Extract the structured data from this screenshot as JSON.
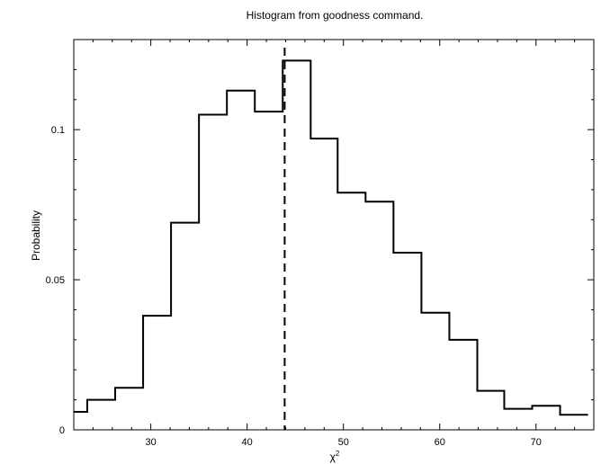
{
  "chart_data": {
    "type": "bar",
    "title": "Histogram from goodness command.",
    "xlabel": "χ",
    "xlabel_superscript": "2",
    "ylabel": "Probability",
    "xlim": [
      22,
      76
    ],
    "ylim": [
      0,
      0.13
    ],
    "xticks": [
      30,
      40,
      50,
      60,
      70
    ],
    "yticks": [
      0,
      0.05,
      0.1
    ],
    "ytick_labels": [
      "0",
      "0.05",
      "0.1"
    ],
    "bin_edges": [
      22.0,
      23.4,
      26.3,
      29.2,
      32.1,
      35.0,
      37.9,
      40.8,
      43.7,
      46.6,
      49.4,
      52.3,
      55.2,
      58.1,
      61.0,
      63.9,
      66.7,
      69.6,
      72.5,
      75.4
    ],
    "values": [
      0.006,
      0.01,
      0.014,
      0.038,
      0.069,
      0.105,
      0.113,
      0.106,
      0.123,
      0.097,
      0.079,
      0.076,
      0.059,
      0.039,
      0.03,
      0.013,
      0.007,
      0.008,
      0.005
    ],
    "reference_line_x": 43.9,
    "grid": false
  }
}
